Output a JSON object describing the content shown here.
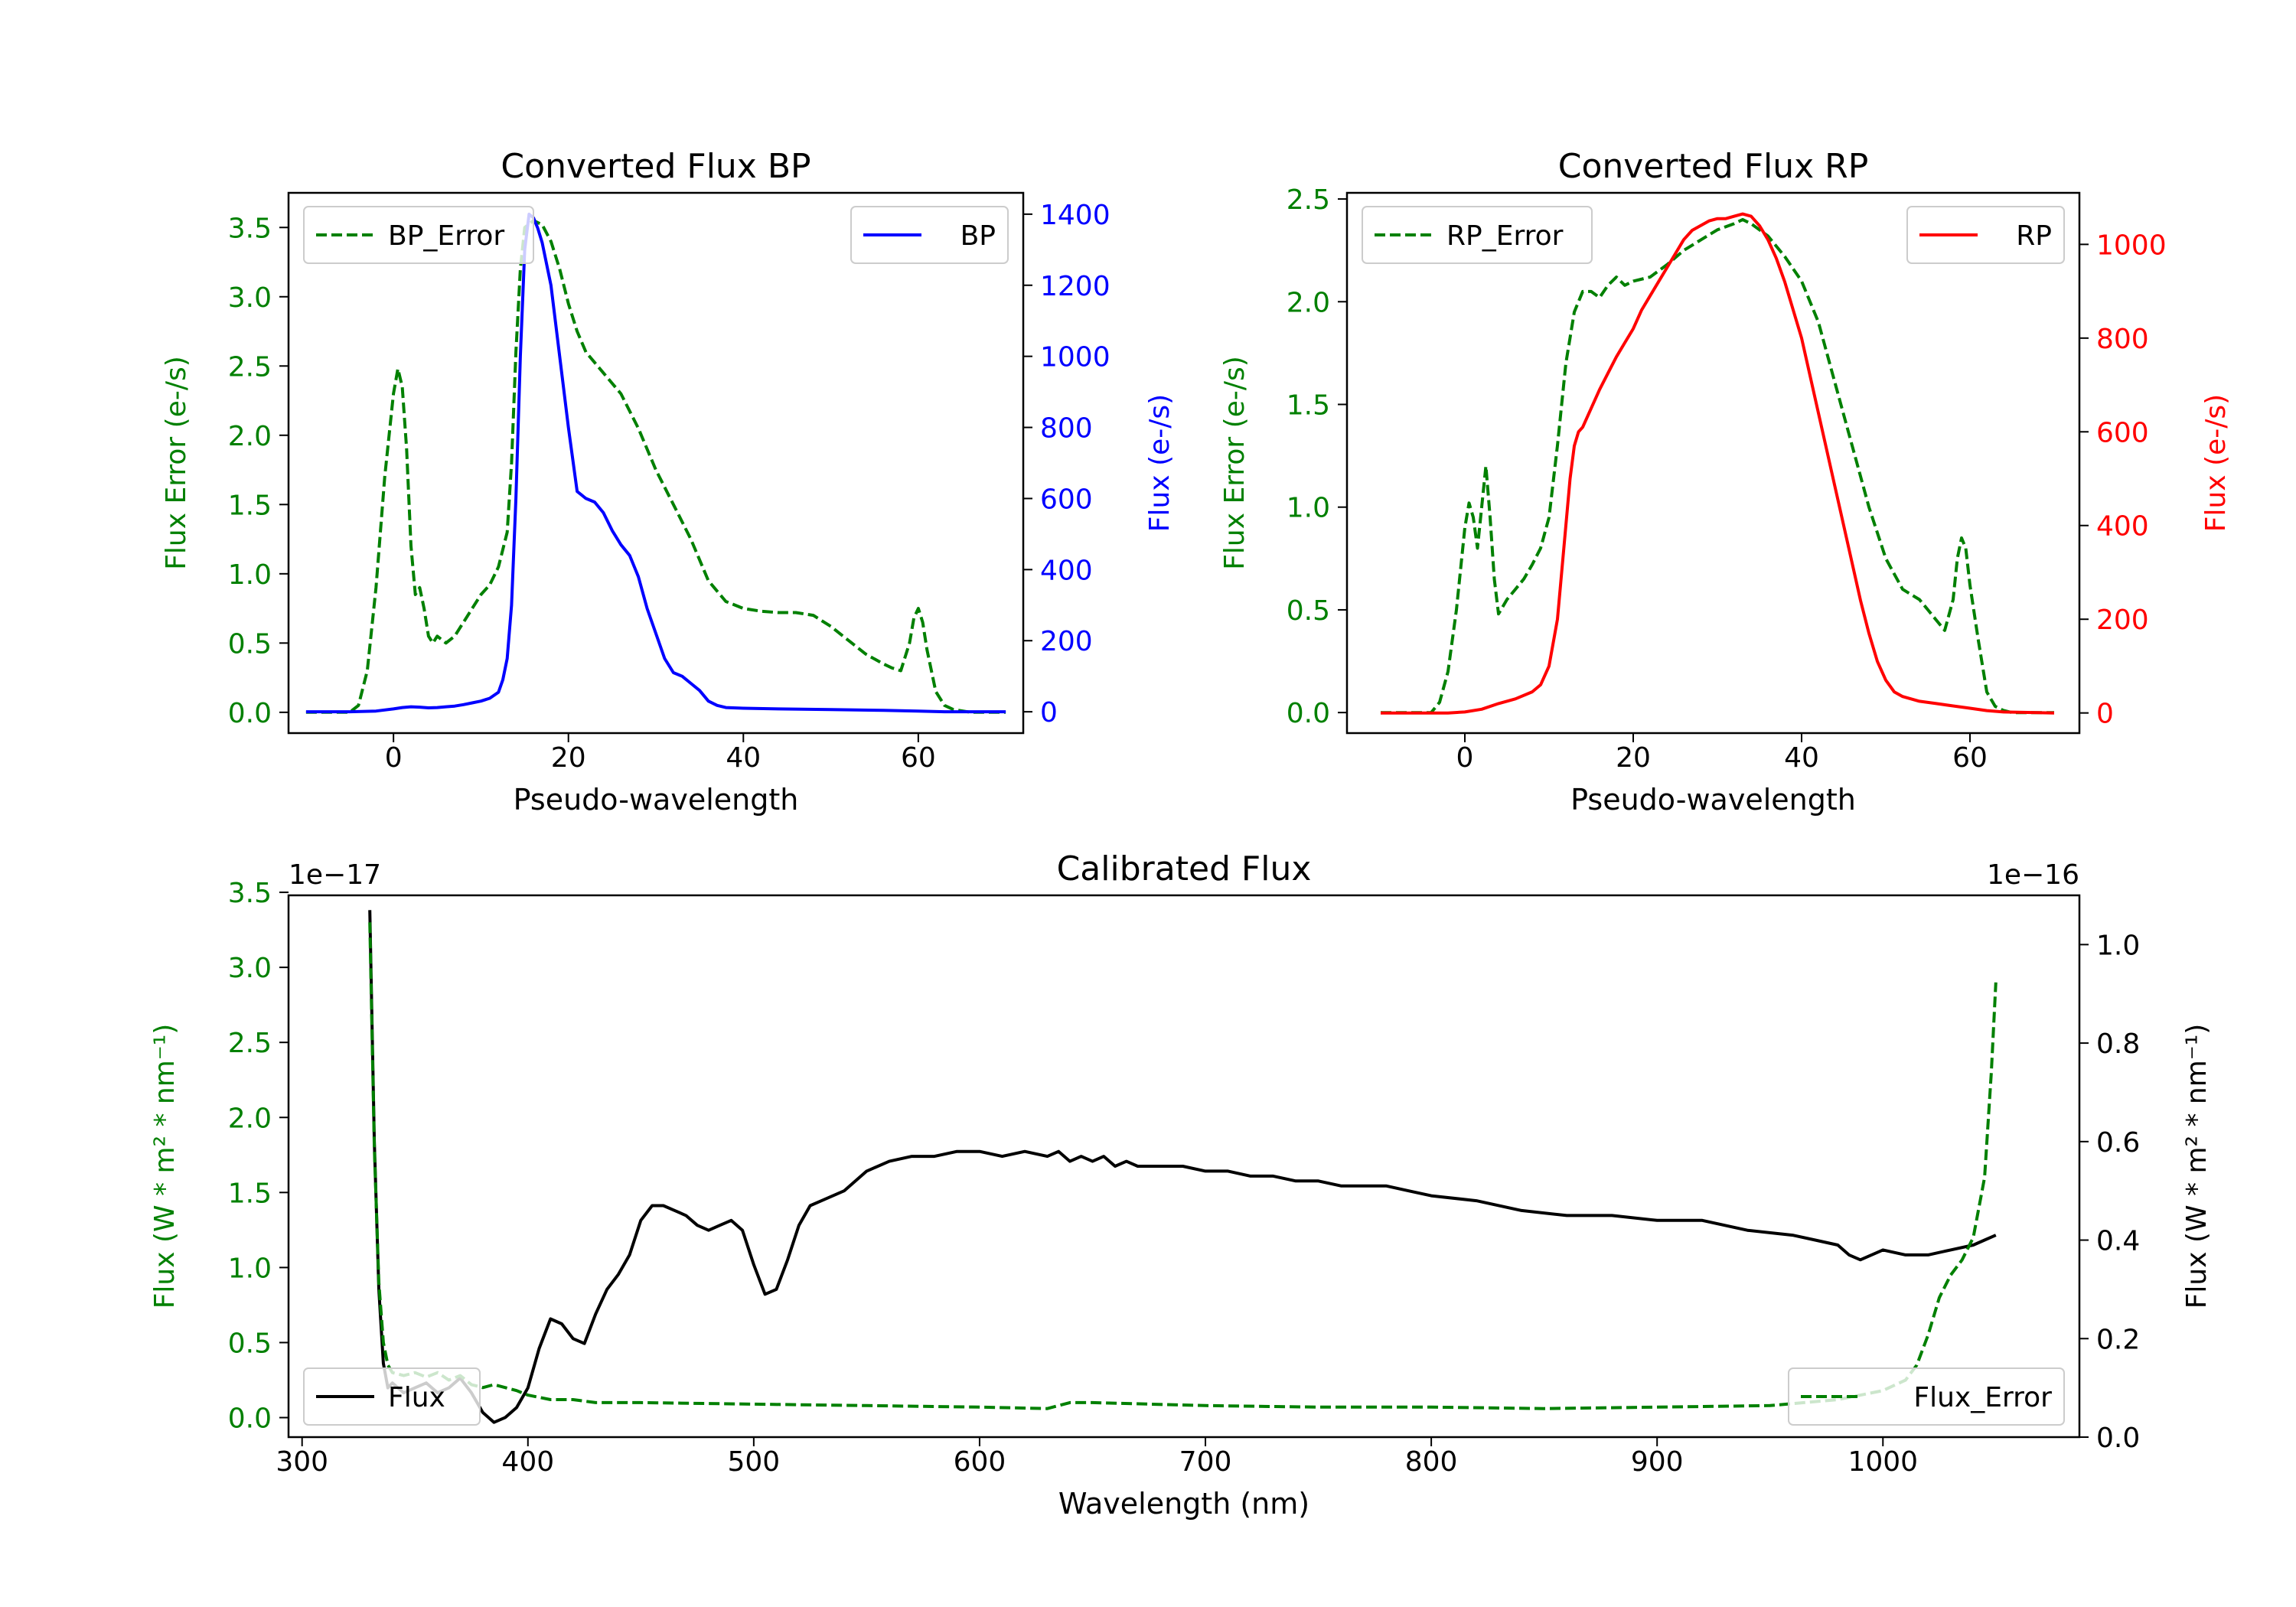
{
  "colors": {
    "error": "#008000",
    "bp": "#0000ff",
    "rp": "#ff0000",
    "flux": "#000000"
  },
  "chart_data": [
    {
      "type": "line",
      "title": "Converted Flux BP",
      "xlabel": "Pseudo-wavelength",
      "ylabel_left": "Flux Error (e-/s)",
      "ylabel_right": "Flux (e-/s)",
      "xlim": [
        -12,
        72
      ],
      "ylim_left": [
        -0.15,
        3.75
      ],
      "ylim_right": [
        -60,
        1460
      ],
      "xticks": [
        0,
        20,
        40,
        60
      ],
      "yticks_left": [
        0.0,
        0.5,
        1.0,
        1.5,
        2.0,
        2.5,
        3.0,
        3.5
      ],
      "yticks_right": [
        0,
        200,
        400,
        600,
        800,
        1000,
        1200,
        1400
      ],
      "legend_left": "BP_Error",
      "legend_right": "BP",
      "series": [
        {
          "name": "BP_Error",
          "axis": "left",
          "style": "dashed",
          "x": [
            -10,
            -5,
            -4,
            -3,
            -2,
            -1,
            0,
            0.5,
            1,
            1.5,
            2,
            2.5,
            3,
            3.5,
            4,
            4.5,
            5,
            6,
            7,
            8,
            9,
            10,
            11,
            12,
            13,
            13.5,
            14,
            14.5,
            15,
            16,
            17,
            18,
            19,
            20,
            21,
            22,
            24,
            26,
            28,
            30,
            32,
            34,
            36,
            38,
            40,
            42,
            44,
            46,
            48,
            50,
            52,
            54,
            56,
            57,
            58,
            59,
            59.5,
            60,
            60.5,
            61,
            62,
            63,
            64,
            66,
            70
          ],
          "y": [
            0.0,
            0.0,
            0.05,
            0.3,
            0.9,
            1.7,
            2.3,
            2.48,
            2.35,
            1.9,
            1.2,
            0.85,
            0.9,
            0.75,
            0.55,
            0.5,
            0.55,
            0.5,
            0.55,
            0.65,
            0.75,
            0.85,
            0.92,
            1.05,
            1.3,
            1.8,
            2.6,
            3.2,
            3.5,
            3.55,
            3.52,
            3.4,
            3.2,
            2.95,
            2.75,
            2.6,
            2.45,
            2.3,
            2.05,
            1.75,
            1.5,
            1.25,
            0.95,
            0.8,
            0.75,
            0.73,
            0.72,
            0.72,
            0.7,
            0.62,
            0.52,
            0.42,
            0.35,
            0.32,
            0.3,
            0.5,
            0.68,
            0.75,
            0.65,
            0.45,
            0.15,
            0.05,
            0.02,
            0.0,
            0.0
          ]
        },
        {
          "name": "BP",
          "axis": "right",
          "style": "solid",
          "x": [
            -10,
            -5,
            -2,
            0,
            1,
            2,
            3,
            4,
            5,
            6,
            7,
            8,
            9,
            10,
            11,
            12,
            12.5,
            13,
            13.5,
            14,
            14.5,
            15,
            15.5,
            16,
            16.5,
            17,
            18,
            19,
            20,
            21,
            22,
            23,
            24,
            25,
            26,
            27,
            28,
            29,
            30,
            31,
            32,
            33,
            34,
            35,
            36,
            37,
            38,
            40,
            44,
            50,
            56,
            60,
            63,
            70
          ],
          "y": [
            0,
            0,
            2,
            8,
            12,
            14,
            13,
            11,
            12,
            14,
            16,
            20,
            25,
            30,
            38,
            55,
            90,
            150,
            300,
            600,
            1000,
            1300,
            1400,
            1390,
            1360,
            1320,
            1200,
            1000,
            800,
            620,
            600,
            590,
            560,
            510,
            470,
            440,
            380,
            290,
            220,
            150,
            110,
            100,
            80,
            60,
            30,
            18,
            12,
            10,
            8,
            6,
            4,
            2,
            0,
            0
          ]
        }
      ]
    },
    {
      "type": "line",
      "title": "Converted Flux RP",
      "xlabel": "Pseudo-wavelength",
      "ylabel_left": "Flux Error (e-/s)",
      "ylabel_right": "Flux (e-/s)",
      "xlim": [
        -14,
        73
      ],
      "ylim_left": [
        -0.1,
        2.53
      ],
      "ylim_right": [
        -43,
        1110
      ],
      "xticks": [
        0,
        20,
        40,
        60
      ],
      "yticks_left": [
        0.0,
        0.5,
        1.0,
        1.5,
        2.0,
        2.5
      ],
      "yticks_right": [
        0,
        200,
        400,
        600,
        800,
        1000
      ],
      "legend_left": "RP_Error",
      "legend_right": "RP",
      "series": [
        {
          "name": "RP_Error",
          "axis": "left",
          "style": "dashed",
          "x": [
            -10,
            -4,
            -3,
            -2,
            -1,
            0,
            0.5,
            1,
            1.5,
            2,
            2.5,
            3,
            3.5,
            4,
            5,
            6,
            7,
            8,
            9,
            10,
            11,
            12,
            13,
            14,
            15,
            16,
            17,
            18,
            19,
            20,
            22,
            24,
            26,
            28,
            30,
            32,
            33,
            34,
            36,
            38,
            40,
            42,
            44,
            46,
            48,
            50,
            52,
            54,
            55,
            56,
            57,
            58,
            58.5,
            59,
            59.5,
            60,
            61,
            62,
            63,
            64,
            65,
            70
          ],
          "y": [
            0.0,
            0.0,
            0.05,
            0.2,
            0.5,
            0.9,
            1.02,
            0.95,
            0.8,
            1.0,
            1.2,
            0.95,
            0.65,
            0.48,
            0.55,
            0.6,
            0.65,
            0.72,
            0.8,
            0.95,
            1.3,
            1.7,
            1.95,
            2.05,
            2.05,
            2.02,
            2.08,
            2.12,
            2.08,
            2.1,
            2.12,
            2.18,
            2.25,
            2.3,
            2.35,
            2.38,
            2.4,
            2.38,
            2.32,
            2.22,
            2.1,
            1.9,
            1.6,
            1.3,
            1.0,
            0.75,
            0.6,
            0.55,
            0.5,
            0.45,
            0.4,
            0.55,
            0.75,
            0.85,
            0.8,
            0.62,
            0.35,
            0.1,
            0.03,
            0.01,
            0.0,
            0.0
          ]
        },
        {
          "name": "RP",
          "axis": "right",
          "style": "solid",
          "x": [
            -10,
            -2,
            0,
            2,
            4,
            6,
            8,
            9,
            10,
            11,
            12,
            12.5,
            13,
            13.5,
            14,
            15,
            16,
            17,
            18,
            19,
            20,
            21,
            22,
            23,
            24,
            25,
            26,
            27,
            28,
            29,
            30,
            31,
            32,
            33,
            34,
            35,
            36,
            37,
            38,
            39,
            40,
            41,
            42,
            43,
            44,
            45,
            46,
            47,
            48,
            49,
            50,
            51,
            52,
            54,
            56,
            58,
            60,
            62,
            64,
            70
          ],
          "y": [
            0,
            0,
            2,
            8,
            20,
            30,
            45,
            60,
            100,
            200,
            400,
            500,
            570,
            600,
            610,
            650,
            690,
            725,
            760,
            790,
            820,
            860,
            890,
            920,
            950,
            980,
            1010,
            1030,
            1040,
            1050,
            1055,
            1055,
            1060,
            1065,
            1060,
            1040,
            1010,
            970,
            920,
            860,
            800,
            720,
            640,
            560,
            480,
            400,
            320,
            240,
            170,
            110,
            70,
            45,
            35,
            25,
            20,
            15,
            10,
            5,
            2,
            0
          ]
        }
      ]
    },
    {
      "type": "line",
      "title": "Calibrated Flux",
      "xlabel": "Wavelength (nm)",
      "ylabel_left": "Flux (W * m² * nm⁻¹)",
      "ylabel_right": "Flux (W * m² * nm⁻¹)",
      "left_offset_text": "1e−17",
      "right_offset_text": "1e−16",
      "xlim": [
        294,
        1087
      ],
      "ylim_left": [
        -0.13,
        3.48
      ],
      "ylim_right": [
        0,
        1.1
      ],
      "xticks": [
        300,
        400,
        500,
        600,
        700,
        800,
        900,
        1000
      ],
      "yticks_left": [
        0.0,
        0.5,
        1.0,
        1.5,
        2.0,
        2.5,
        3.0,
        3.5
      ],
      "yticks_right": [
        0.0,
        0.2,
        0.4,
        0.6,
        0.8,
        1.0
      ],
      "legend_left": "Flux",
      "legend_right": "Flux_Error",
      "series": [
        {
          "name": "Flux",
          "axis": "right",
          "style": "solid",
          "x": [
            330,
            332,
            334,
            336,
            338,
            340,
            345,
            350,
            355,
            360,
            365,
            370,
            375,
            380,
            385,
            390,
            395,
            400,
            405,
            410,
            415,
            420,
            425,
            430,
            435,
            440,
            445,
            450,
            455,
            460,
            465,
            470,
            475,
            480,
            485,
            490,
            495,
            500,
            505,
            510,
            515,
            520,
            525,
            530,
            540,
            550,
            560,
            570,
            580,
            590,
            600,
            610,
            620,
            630,
            635,
            640,
            645,
            650,
            655,
            660,
            665,
            670,
            680,
            690,
            700,
            710,
            720,
            730,
            740,
            750,
            760,
            770,
            780,
            790,
            800,
            820,
            840,
            860,
            880,
            900,
            920,
            940,
            960,
            970,
            980,
            985,
            990,
            1000,
            1010,
            1020,
            1030,
            1040,
            1045,
            1050
          ],
          "y": [
            1.07,
            0.6,
            0.3,
            0.15,
            0.1,
            0.11,
            0.09,
            0.1,
            0.11,
            0.09,
            0.1,
            0.12,
            0.09,
            0.05,
            0.03,
            0.04,
            0.06,
            0.1,
            0.18,
            0.24,
            0.23,
            0.2,
            0.19,
            0.25,
            0.3,
            0.33,
            0.37,
            0.44,
            0.47,
            0.47,
            0.46,
            0.45,
            0.43,
            0.42,
            0.43,
            0.44,
            0.42,
            0.35,
            0.29,
            0.3,
            0.36,
            0.43,
            0.47,
            0.48,
            0.5,
            0.54,
            0.56,
            0.57,
            0.57,
            0.58,
            0.58,
            0.57,
            0.58,
            0.57,
            0.58,
            0.56,
            0.57,
            0.56,
            0.57,
            0.55,
            0.56,
            0.55,
            0.55,
            0.55,
            0.54,
            0.54,
            0.53,
            0.53,
            0.52,
            0.52,
            0.51,
            0.51,
            0.51,
            0.5,
            0.49,
            0.48,
            0.46,
            0.45,
            0.45,
            0.44,
            0.44,
            0.42,
            0.41,
            0.4,
            0.39,
            0.37,
            0.36,
            0.38,
            0.37,
            0.37,
            0.38,
            0.39,
            0.4,
            0.41
          ]
        },
        {
          "name": "Flux_Error",
          "axis": "left",
          "style": "dashed",
          "x": [
            330,
            332,
            334,
            336,
            338,
            340,
            345,
            350,
            355,
            360,
            365,
            370,
            375,
            380,
            385,
            390,
            395,
            400,
            410,
            420,
            430,
            440,
            450,
            500,
            550,
            600,
            630,
            640,
            650,
            700,
            750,
            800,
            850,
            900,
            950,
            980,
            1000,
            1010,
            1015,
            1020,
            1025,
            1030,
            1035,
            1040,
            1045,
            1048,
            1050
          ],
          "y": [
            3.3,
            1.8,
            0.9,
            0.5,
            0.35,
            0.3,
            0.28,
            0.3,
            0.27,
            0.3,
            0.25,
            0.28,
            0.22,
            0.2,
            0.22,
            0.2,
            0.18,
            0.15,
            0.12,
            0.12,
            0.1,
            0.1,
            0.1,
            0.09,
            0.08,
            0.07,
            0.06,
            0.1,
            0.1,
            0.08,
            0.07,
            0.07,
            0.06,
            0.07,
            0.08,
            0.12,
            0.18,
            0.25,
            0.35,
            0.55,
            0.8,
            0.95,
            1.05,
            1.2,
            1.6,
            2.3,
            2.9
          ]
        }
      ]
    }
  ]
}
